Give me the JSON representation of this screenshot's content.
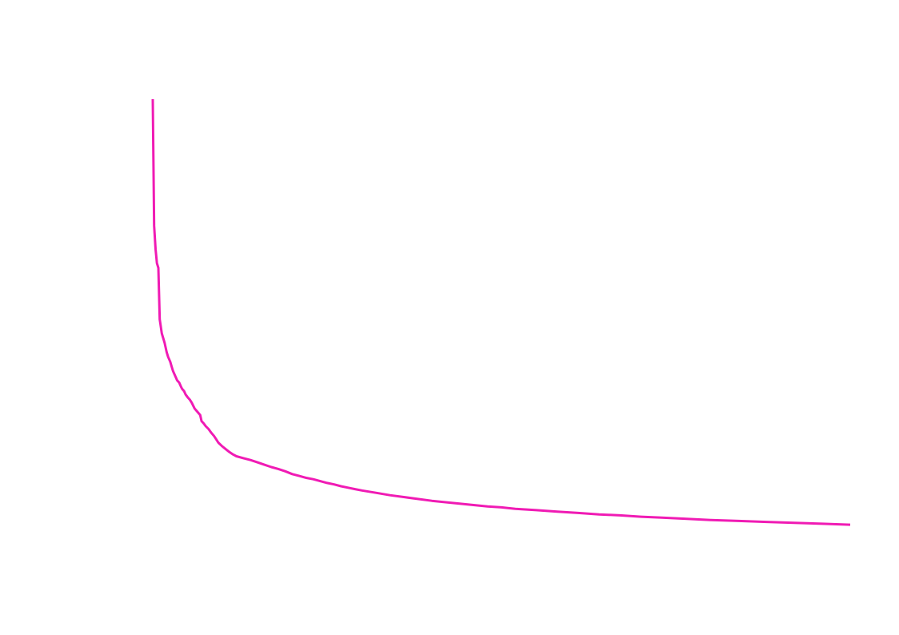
{
  "chart_data": {
    "type": "line",
    "title": "",
    "xlabel": "",
    "ylabel": "",
    "grid": false,
    "axes_visible": false,
    "xlim": [
      0,
      100
    ],
    "ylim": [
      0,
      100
    ],
    "line_color": "#f01bb4",
    "background": "#ffffff",
    "series": [
      {
        "x": [
          0,
          0.2,
          0.4,
          0.6,
          0.8,
          1.0,
          1.1,
          1.3,
          1.5,
          1.7,
          2.0,
          2.2,
          2.5,
          2.7,
          2.9,
          3.2,
          3.5,
          3.8,
          4.0,
          4.2,
          4.5,
          4.7,
          5.0,
          5.3,
          5.6,
          6.0,
          6.4,
          6.8,
          7.0,
          7.3,
          7.6,
          8.0,
          8.4,
          8.8,
          9.1,
          9.4,
          9.9,
          10.4,
          11.0,
          11.5,
          12.0,
          13.0,
          14.0,
          15.0,
          16.0,
          17.0,
          18.0,
          19.0,
          20.0,
          21.0,
          22.0,
          23.0,
          24.0,
          25.0,
          26.0,
          27.0,
          28.0,
          29.0,
          30.0,
          32.0,
          34.0,
          36.0,
          38.0,
          40.0,
          42.0,
          44.0,
          46.0,
          48.0,
          50.0,
          52.0,
          55.0,
          58.0,
          61.0,
          64.0,
          67.0,
          70.0,
          73.0,
          76.0,
          80.0,
          84.0,
          88.0,
          92.0,
          96.0,
          100.0
        ],
        "values": [
          100,
          73,
          68,
          65,
          64,
          53,
          52,
          50,
          49,
          48,
          46,
          45,
          44,
          43,
          42,
          41,
          40,
          39.5,
          38.8,
          38.2,
          37.7,
          37.0,
          36.4,
          35.9,
          35.2,
          34.0,
          33.3,
          32.6,
          31.3,
          30.8,
          30.2,
          29.6,
          28.8,
          28.1,
          27.4,
          26.7,
          26.0,
          25.4,
          24.7,
          24.2,
          23.8,
          23.4,
          23.0,
          22.5,
          22.0,
          21.5,
          21.1,
          20.6,
          20.0,
          19.6,
          19.2,
          18.9,
          18.5,
          18.1,
          17.8,
          17.4,
          17.1,
          16.8,
          16.5,
          16.0,
          15.5,
          15.1,
          14.7,
          14.3,
          14.0,
          13.7,
          13.4,
          13.1,
          12.9,
          12.6,
          12.3,
          12.0,
          11.7,
          11.4,
          11.2,
          10.9,
          10.7,
          10.5,
          10.2,
          10.0,
          9.8,
          9.6,
          9.4,
          9.2
        ]
      }
    ]
  }
}
